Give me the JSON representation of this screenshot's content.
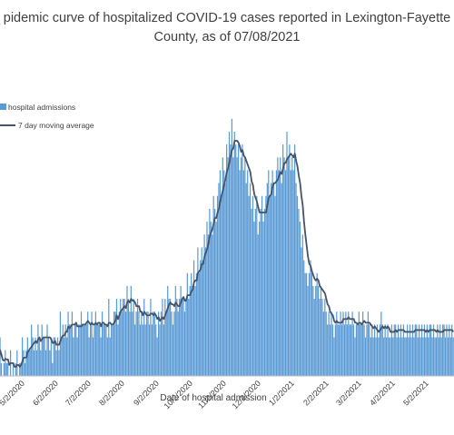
{
  "chart_data": {
    "type": "bar",
    "title_line1": "pidemic curve of hospitalized COVID-19 cases reported in Lexington-Fayette",
    "title_line2": "County, as of 07/08/2021",
    "xlabel": "Date of hospital admission",
    "ylabel": "",
    "grid": false,
    "legend_position": "top-left",
    "x_tick_labels": [
      "5/2/2020",
      "6/2/2020",
      "7/2/2020",
      "8/2/2020",
      "9/2/2020",
      "10/2/2020",
      "11/2/2020",
      "12/2/2020",
      "1/2/2021",
      "2/2/2021",
      "3/2/2021",
      "4/2/2021",
      "5/2/2021"
    ],
    "approx_start_date": "2020-04-18",
    "series": [
      {
        "name": "hospital admissions",
        "kind": "bar",
        "color": "#5b9bd5",
        "values": [
          1,
          3,
          1,
          0,
          1,
          2,
          1,
          1,
          0,
          2,
          0,
          1,
          0,
          1,
          2,
          0,
          1,
          1,
          3,
          2,
          1,
          2,
          3,
          2,
          2,
          4,
          3,
          2,
          3,
          2,
          4,
          3,
          2,
          4,
          3,
          3,
          2,
          4,
          3,
          2,
          3,
          1,
          3,
          3,
          2,
          3,
          2,
          5,
          3,
          4,
          3,
          4,
          3,
          5,
          4,
          4,
          5,
          3,
          4,
          4,
          3,
          4,
          4,
          5,
          4,
          4,
          4,
          4,
          5,
          3,
          4,
          5,
          3,
          4,
          5,
          4,
          4,
          4,
          3,
          5,
          4,
          4,
          4,
          3,
          6,
          3,
          4,
          4,
          5,
          5,
          6,
          4,
          5,
          6,
          5,
          6,
          6,
          5,
          7,
          6,
          5,
          7,
          5,
          6,
          4,
          5,
          6,
          5,
          4,
          5,
          4,
          6,
          4,
          5,
          5,
          4,
          6,
          4,
          5,
          5,
          4,
          3,
          5,
          4,
          5,
          6,
          4,
          6,
          5,
          7,
          6,
          6,
          5,
          4,
          5,
          7,
          6,
          5,
          6,
          7,
          6,
          6,
          5,
          6,
          8,
          6,
          7,
          8,
          7,
          9,
          7,
          8,
          10,
          8,
          9,
          10,
          9,
          11,
          10,
          12,
          11,
          13,
          12,
          11,
          14,
          13,
          12,
          14,
          15,
          16,
          14,
          17,
          16,
          15,
          18,
          17,
          19,
          18,
          20,
          17,
          19,
          18,
          17,
          18,
          16,
          17,
          18,
          16,
          17,
          15,
          16,
          14,
          15,
          13,
          14,
          12,
          13,
          14,
          11,
          12,
          13,
          14,
          12,
          13,
          14,
          15,
          16,
          14,
          15,
          16,
          15,
          14,
          16,
          17,
          16,
          17,
          15,
          18,
          17,
          16,
          19,
          17,
          18,
          16,
          17,
          16,
          18,
          15,
          14,
          13,
          12,
          10,
          11,
          9,
          8,
          8,
          7,
          8,
          9,
          8,
          7,
          6,
          7,
          8,
          7,
          6,
          7,
          6,
          5,
          6,
          5,
          4,
          5,
          4,
          5,
          4,
          3,
          4,
          5,
          4,
          4,
          5,
          4,
          5,
          4,
          5,
          4,
          5,
          4,
          4,
          5,
          4,
          3,
          4,
          4,
          5,
          4,
          4,
          5,
          4,
          3,
          4,
          5,
          4,
          3,
          4,
          3,
          4,
          3,
          4,
          3,
          4,
          5,
          4,
          3,
          4,
          3,
          4,
          3,
          3,
          4,
          3,
          4,
          4,
          3,
          4,
          3,
          4,
          3,
          4,
          3,
          3,
          4,
          3,
          4,
          3,
          4,
          3,
          4,
          4,
          3,
          4,
          3,
          4,
          3,
          4,
          3,
          4,
          3,
          4,
          4,
          3,
          4,
          3,
          3,
          4,
          3,
          4,
          3,
          4,
          4,
          3,
          4,
          3,
          4,
          3,
          4,
          3
        ]
      },
      {
        "name": "7 day moving average",
        "kind": "line",
        "color": "#44546a"
      }
    ]
  }
}
